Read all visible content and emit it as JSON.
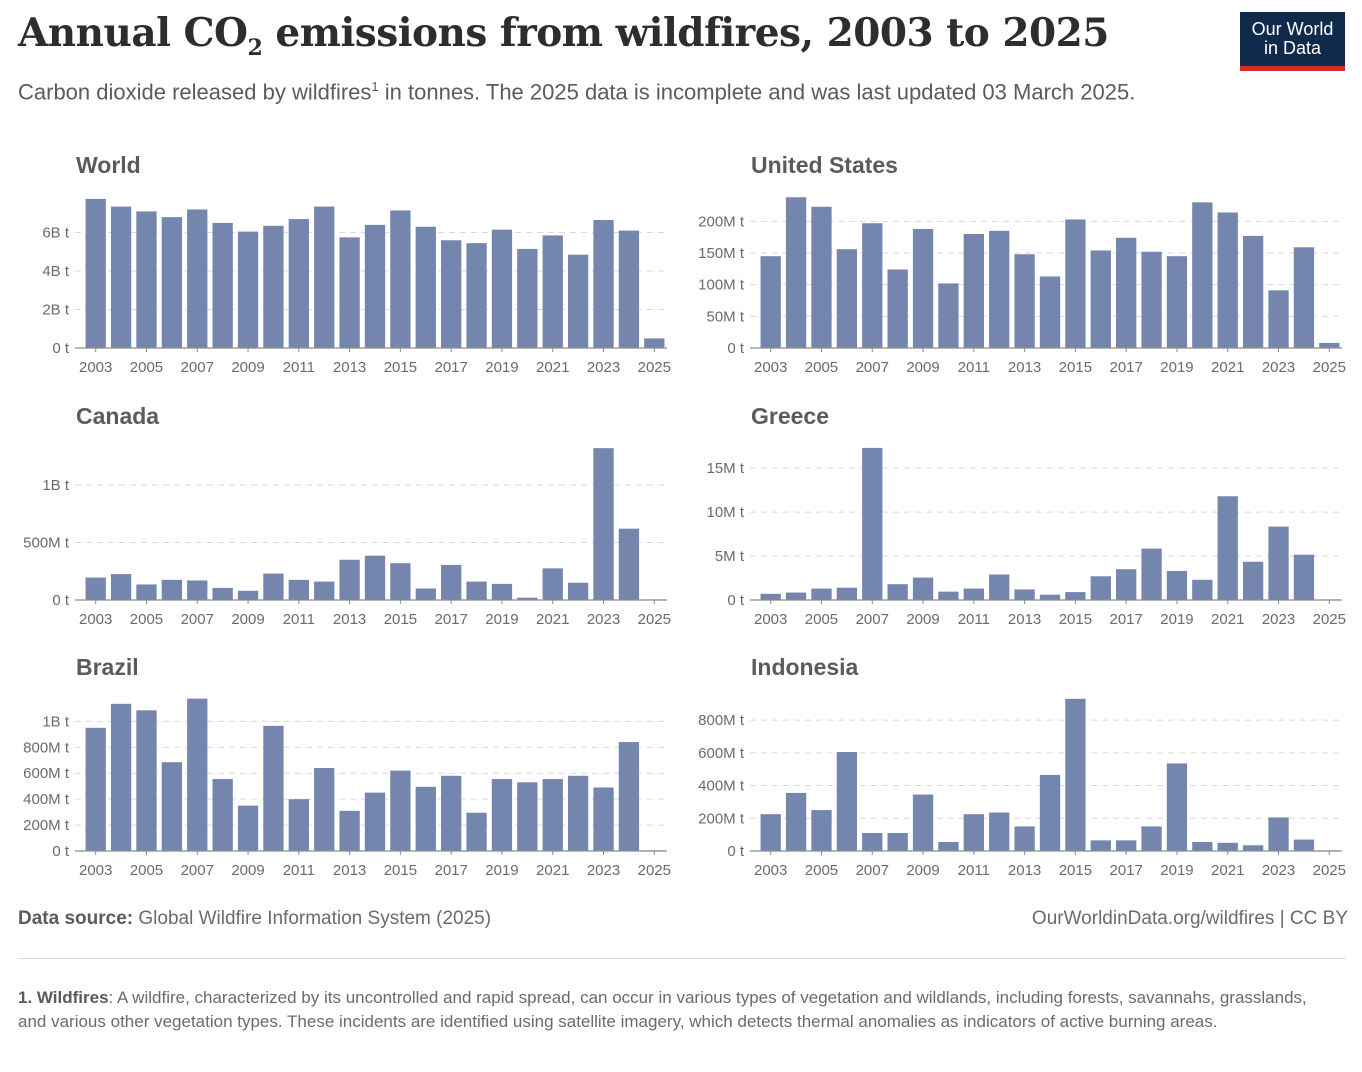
{
  "header": {
    "title_prefix": "Annual CO",
    "title_sub": "2",
    "title_suffix": " emissions from wildfires, 2003 to 2025",
    "subtitle_a": "Carbon dioxide released by wildfires",
    "subtitle_sup": "1",
    "subtitle_b": " in tonnes. The 2025 data is incomplete and was last updated 03 March 2025.",
    "logo_line1": "Our World",
    "logo_line2": "in Data",
    "colors": {
      "bar": "#7586ae",
      "logo_bg": "#0f2a4a",
      "logo_accent": "#d42b2b"
    }
  },
  "chart_data": [
    {
      "type": "bar",
      "title": "World",
      "categories": [
        "2003",
        "2004",
        "2005",
        "2006",
        "2007",
        "2008",
        "2009",
        "2010",
        "2011",
        "2012",
        "2013",
        "2014",
        "2015",
        "2016",
        "2017",
        "2018",
        "2019",
        "2020",
        "2021",
        "2022",
        "2023",
        "2024",
        "2025"
      ],
      "x_tick_labels": [
        "2003",
        "2005",
        "2007",
        "2009",
        "2011",
        "2013",
        "2015",
        "2017",
        "2019",
        "2021",
        "2023",
        "2025"
      ],
      "values": [
        7.75,
        7.35,
        7.1,
        6.8,
        7.2,
        6.5,
        6.05,
        6.35,
        6.7,
        7.35,
        5.75,
        6.4,
        7.15,
        6.3,
        5.6,
        5.45,
        6.15,
        5.15,
        5.85,
        4.85,
        6.65,
        6.1,
        0.5
      ],
      "ylim": [
        0,
        7.9
      ],
      "y_ticks": [
        0,
        2,
        4,
        6
      ],
      "y_tick_labels": [
        "0 t",
        "2B t",
        "4B t",
        "6B t"
      ],
      "unit": "billion tonnes"
    },
    {
      "type": "bar",
      "title": "United States",
      "categories": [
        "2003",
        "2004",
        "2005",
        "2006",
        "2007",
        "2008",
        "2009",
        "2010",
        "2011",
        "2012",
        "2013",
        "2014",
        "2015",
        "2016",
        "2017",
        "2018",
        "2019",
        "2020",
        "2021",
        "2022",
        "2023",
        "2024",
        "2025"
      ],
      "x_tick_labels": [
        "2003",
        "2005",
        "2007",
        "2009",
        "2011",
        "2013",
        "2015",
        "2017",
        "2019",
        "2021",
        "2023",
        "2025"
      ],
      "values": [
        145,
        238,
        223,
        156,
        197,
        124,
        188,
        102,
        180,
        185,
        148,
        113,
        203,
        154,
        174,
        152,
        145,
        230,
        214,
        177,
        91,
        159,
        8
      ],
      "ylim": [
        0,
        240
      ],
      "y_ticks": [
        0,
        50,
        100,
        150,
        200
      ],
      "y_tick_labels": [
        "0 t",
        "50M t",
        "100M t",
        "150M t",
        "200M t"
      ],
      "unit": "million tonnes"
    },
    {
      "type": "bar",
      "title": "Canada",
      "categories": [
        "2003",
        "2004",
        "2005",
        "2006",
        "2007",
        "2008",
        "2009",
        "2010",
        "2011",
        "2012",
        "2013",
        "2014",
        "2015",
        "2016",
        "2017",
        "2018",
        "2019",
        "2020",
        "2021",
        "2022",
        "2023",
        "2024",
        "2025"
      ],
      "x_tick_labels": [
        "2003",
        "2005",
        "2007",
        "2009",
        "2011",
        "2013",
        "2015",
        "2017",
        "2019",
        "2021",
        "2023",
        "2025"
      ],
      "values": [
        195,
        225,
        135,
        175,
        170,
        105,
        80,
        230,
        175,
        160,
        350,
        385,
        320,
        100,
        305,
        160,
        140,
        20,
        275,
        150,
        1320,
        620,
        2
      ],
      "ylim": [
        0,
        1330
      ],
      "y_ticks": [
        0,
        500,
        1000
      ],
      "y_tick_labels": [
        "0 t",
        "500M t",
        "1B t"
      ],
      "unit": "million tonnes"
    },
    {
      "type": "bar",
      "title": "Greece",
      "categories": [
        "2003",
        "2004",
        "2005",
        "2006",
        "2007",
        "2008",
        "2009",
        "2010",
        "2011",
        "2012",
        "2013",
        "2014",
        "2015",
        "2016",
        "2017",
        "2018",
        "2019",
        "2020",
        "2021",
        "2022",
        "2023",
        "2024",
        "2025"
      ],
      "x_tick_labels": [
        "2003",
        "2005",
        "2007",
        "2009",
        "2011",
        "2013",
        "2015",
        "2017",
        "2019",
        "2021",
        "2023",
        "2025"
      ],
      "values": [
        0.7,
        0.85,
        1.3,
        1.4,
        17.3,
        1.8,
        2.55,
        0.95,
        1.3,
        2.9,
        1.2,
        0.6,
        0.9,
        2.7,
        3.5,
        5.85,
        3.3,
        2.3,
        11.8,
        4.35,
        8.35,
        5.15,
        0.02
      ],
      "ylim": [
        0,
        17.4
      ],
      "y_ticks": [
        0,
        5,
        10,
        15
      ],
      "y_tick_labels": [
        "0 t",
        "5M t",
        "10M t",
        "15M t"
      ],
      "unit": "million tonnes"
    },
    {
      "type": "bar",
      "title": "Brazil",
      "categories": [
        "2003",
        "2004",
        "2005",
        "2006",
        "2007",
        "2008",
        "2009",
        "2010",
        "2011",
        "2012",
        "2013",
        "2014",
        "2015",
        "2016",
        "2017",
        "2018",
        "2019",
        "2020",
        "2021",
        "2022",
        "2023",
        "2024",
        "2025"
      ],
      "x_tick_labels": [
        "2003",
        "2005",
        "2007",
        "2009",
        "2011",
        "2013",
        "2015",
        "2017",
        "2019",
        "2021",
        "2023",
        "2025"
      ],
      "values": [
        950,
        1135,
        1085,
        685,
        1175,
        555,
        350,
        965,
        400,
        640,
        310,
        450,
        620,
        495,
        580,
        295,
        555,
        530,
        555,
        580,
        490,
        840,
        5
      ],
      "ylim": [
        0,
        1180
      ],
      "y_ticks": [
        0,
        200,
        400,
        600,
        800,
        1000
      ],
      "y_tick_labels": [
        "0 t",
        "200M t",
        "400M t",
        "600M t",
        "800M t",
        "1B t"
      ],
      "unit": "million tonnes"
    },
    {
      "type": "bar",
      "title": "Indonesia",
      "categories": [
        "2003",
        "2004",
        "2005",
        "2006",
        "2007",
        "2008",
        "2009",
        "2010",
        "2011",
        "2012",
        "2013",
        "2014",
        "2015",
        "2016",
        "2017",
        "2018",
        "2019",
        "2020",
        "2021",
        "2022",
        "2023",
        "2024",
        "2025"
      ],
      "x_tick_labels": [
        "2003",
        "2005",
        "2007",
        "2009",
        "2011",
        "2013",
        "2015",
        "2017",
        "2019",
        "2021",
        "2023",
        "2025"
      ],
      "values": [
        225,
        355,
        250,
        605,
        110,
        110,
        345,
        55,
        225,
        235,
        150,
        465,
        930,
        65,
        65,
        150,
        535,
        55,
        50,
        35,
        205,
        70,
        1
      ],
      "ylim": [
        0,
        935
      ],
      "y_ticks": [
        0,
        200,
        400,
        600,
        800
      ],
      "y_tick_labels": [
        "0 t",
        "200M t",
        "400M t",
        "600M t",
        "800M t"
      ],
      "unit": "million tonnes"
    }
  ],
  "footer": {
    "source_label": "Data source:",
    "source_text": " Global Wildfire Information System (2025)",
    "url_text": "OurWorldinData.org/wildfires | CC BY",
    "footnote_label": "1. Wildfires",
    "footnote_text": ": A wildfire, characterized by its uncontrolled and rapid spread, can occur in various types of vegetation and wildlands, including forests, savannahs, grasslands, and various other vegetation types. These incidents are identified using satellite imagery, which detects thermal anomalies as indicators of active burning areas."
  }
}
